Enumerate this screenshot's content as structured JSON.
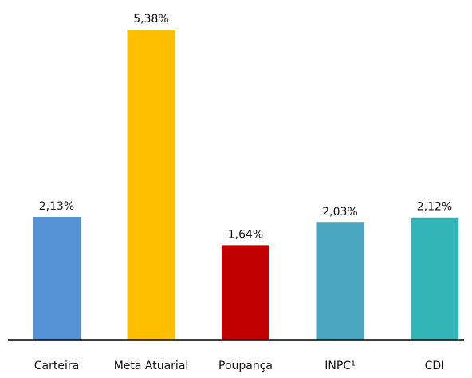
{
  "chart_data": {
    "type": "bar",
    "categories": [
      "Carteira",
      "Meta Atuarial",
      "Poupança",
      "INPC¹",
      "CDI"
    ],
    "values": [
      2.13,
      5.38,
      1.64,
      2.03,
      2.12
    ],
    "value_labels": [
      "2,13%",
      "5,38%",
      "1,64%",
      "2,03%",
      "2,12%"
    ],
    "colors": [
      "#5592d6",
      "#ffbf00",
      "#c00000",
      "#4aa6c0",
      "#33b5b7"
    ],
    "title": "",
    "xlabel": "",
    "ylabel": "",
    "ylim": [
      0,
      5.38
    ],
    "grid": false,
    "legend": "none"
  }
}
